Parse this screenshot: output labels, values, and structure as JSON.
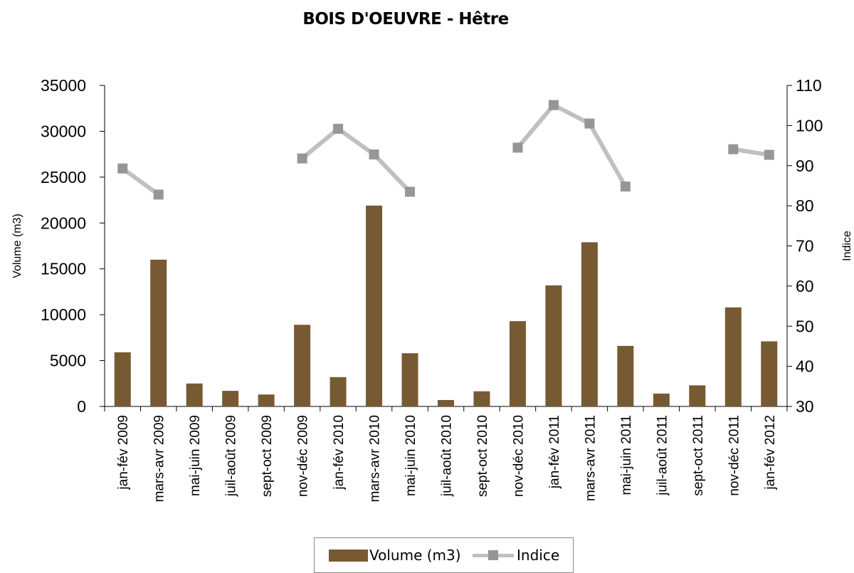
{
  "chart_data": {
    "type": "bar",
    "title": "BOIS D'OEUVRE - Hêtre",
    "ylabel": "Volume (m3)",
    "y2label": "Indice",
    "ylim": [
      0,
      35000
    ],
    "y2lim": [
      30,
      110
    ],
    "yticks": [
      "0",
      "5000",
      "10000",
      "15000",
      "20000",
      "25000",
      "30000",
      "35000"
    ],
    "y2ticks": [
      "30",
      "40",
      "50",
      "60",
      "70",
      "80",
      "90",
      "100",
      "110"
    ],
    "categories": [
      "jan-fév 2009",
      "mars-avr 2009",
      "mai-juin 2009",
      "juil-août 2009",
      "sept-oct 2009",
      "nov-déc 2009",
      "jan-fév 2010",
      "mars-avr 2010",
      "mai-juin 2010",
      "juil-août 2010",
      "sept-oct 2010",
      "nov-déc 2010",
      "jan-fév 2011",
      "mars-avr 2011",
      "mai-juin 2011",
      "juil-août 2011",
      "sept-oct 2011",
      "nov-déc 2011",
      "jan-fév 2012"
    ],
    "series": [
      {
        "name": "Volume (m3)",
        "type": "bar",
        "axis": "left",
        "color": "#775a33",
        "values": [
          5900,
          16000,
          2500,
          1700,
          1300,
          8900,
          3200,
          21900,
          5800,
          700,
          1650,
          9300,
          13200,
          17900,
          6600,
          1400,
          2300,
          10800,
          7100
        ]
      },
      {
        "name": "Indice",
        "type": "line",
        "axis": "right",
        "color": "#c0c0c0",
        "marker_color": "#969696",
        "values": [
          89.3,
          82.8,
          null,
          null,
          null,
          91.8,
          99.2,
          92.8,
          83.5,
          null,
          null,
          94.5,
          105.1,
          100.5,
          84.8,
          null,
          null,
          94.1,
          92.7
        ]
      }
    ],
    "legend_position": "bottom",
    "grid": false
  }
}
